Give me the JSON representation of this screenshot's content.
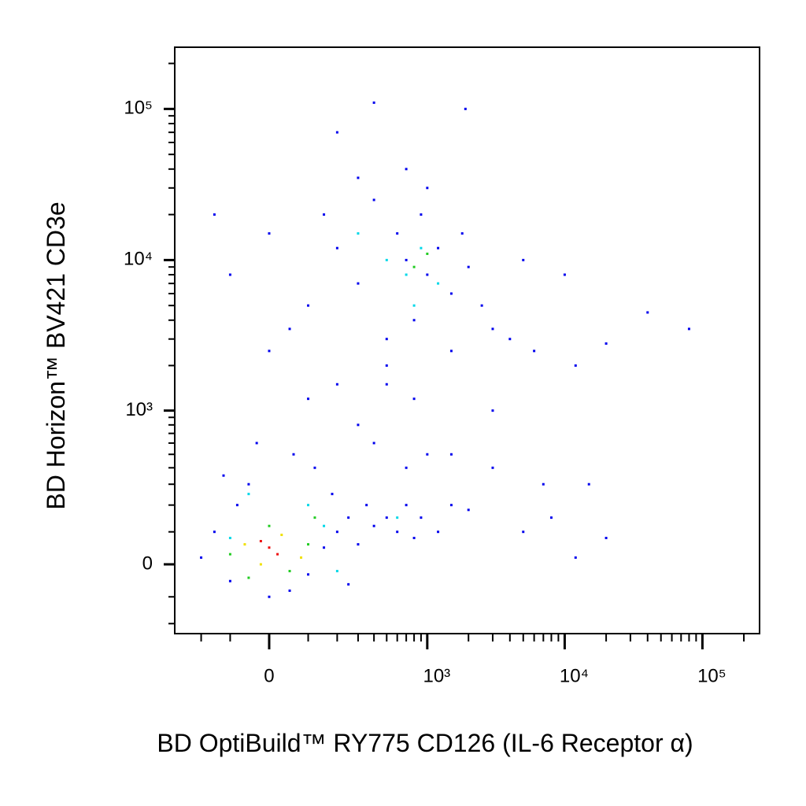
{
  "chart_data": {
    "type": "scatter",
    "xlabel": "BD OptiBuild™ RY775 CD126 (IL-6 Receptor α)",
    "ylabel": "BD Horizon™ BV421 CD3e",
    "xscale": "biexponential",
    "yscale": "biexponential",
    "xlim": [
      -332,
      260000
    ],
    "ylim": [
      -245,
      256000
    ],
    "xticks": [
      0,
      {
        "value": 1000,
        "label": "10³"
      },
      {
        "value": 10000,
        "label": "10⁴"
      },
      {
        "value": 100000,
        "label": "10⁵"
      }
    ],
    "yticks": [
      0,
      {
        "value": 1000,
        "label": "10³"
      },
      {
        "value": 10000,
        "label": "10⁴"
      },
      {
        "value": 100000,
        "label": "10⁵"
      }
    ],
    "xminorticks": [
      -200,
      -100,
      100,
      200,
      300,
      400,
      500,
      600,
      700,
      800,
      900,
      2000,
      3000,
      4000,
      5000,
      6000,
      7000,
      8000,
      9000,
      20000,
      30000,
      40000,
      50000,
      60000,
      70000,
      80000,
      90000,
      200000
    ],
    "yminorticks": [
      -200,
      -100,
      100,
      200,
      300,
      400,
      500,
      600,
      700,
      800,
      900,
      2000,
      3000,
      4000,
      5000,
      6000,
      7000,
      8000,
      9000,
      20000,
      30000,
      40000,
      50000,
      60000,
      70000,
      80000,
      90000,
      200000
    ],
    "series": [
      {
        "color": "#0000ee",
        "x": [
          -200,
          -150,
          -100,
          -80,
          -50,
          0,
          50,
          100,
          150,
          200,
          250,
          300,
          180,
          120,
          -120,
          60,
          -30,
          250,
          350,
          400,
          500,
          600,
          700,
          800,
          900,
          1200,
          1500,
          2000,
          700,
          400,
          300,
          500,
          800,
          1000,
          1500,
          3000,
          5000,
          8000,
          20000,
          15000,
          7000,
          12000,
          -100,
          0,
          100,
          150,
          200,
          300,
          400,
          500,
          600,
          700,
          800,
          900,
          1000,
          1200,
          1500,
          1800,
          2000,
          2500,
          -150,
          50,
          300,
          1000,
          700,
          1500,
          3000,
          500,
          200,
          100,
          0,
          400,
          1900,
          200,
          5000,
          10000,
          4000,
          6000,
          20000,
          40000,
          80000,
          12000,
          3000
        ],
        "y": [
          20,
          100,
          -50,
          200,
          300,
          -100,
          -80,
          -30,
          50,
          100,
          150,
          60,
          250,
          400,
          350,
          500,
          600,
          -60,
          200,
          120,
          150,
          100,
          200,
          80,
          150,
          100,
          200,
          180,
          400,
          600,
          800,
          1500,
          1200,
          500,
          500,
          400,
          100,
          150,
          80,
          300,
          300,
          20,
          8000,
          15000,
          5000,
          20000,
          12000,
          7000,
          25000,
          3000,
          15000,
          10000,
          4000,
          20000,
          8000,
          12000,
          6000,
          15000,
          9000,
          5000,
          20000,
          3500,
          35000,
          30000,
          40000,
          2500,
          3500,
          2000,
          1500,
          1200,
          2500,
          110000,
          100000,
          70000,
          10000,
          8000,
          3000,
          2500,
          2800,
          4500,
          3500,
          2000,
          1000
        ]
      },
      {
        "color": "#00d8e8",
        "x": [
          -100,
          100,
          200,
          -50,
          150,
          700,
          900,
          500,
          1200,
          800,
          300,
          600
        ],
        "y": [
          80,
          200,
          -20,
          250,
          120,
          8000,
          12000,
          10000,
          7000,
          5000,
          15000,
          150
        ]
      },
      {
        "color": "#22cc22",
        "x": [
          -100,
          0,
          50,
          100,
          -50,
          120,
          800,
          1000
        ],
        "y": [
          30,
          120,
          -20,
          60,
          -40,
          150,
          9000,
          11000
        ]
      },
      {
        "color": "#f0e000",
        "x": [
          -60,
          30,
          80,
          -20
        ],
        "y": [
          60,
          90,
          20,
          0
        ]
      },
      {
        "color": "#ee1010",
        "x": [
          0,
          -20,
          20
        ],
        "y": [
          50,
          70,
          30
        ]
      }
    ]
  }
}
